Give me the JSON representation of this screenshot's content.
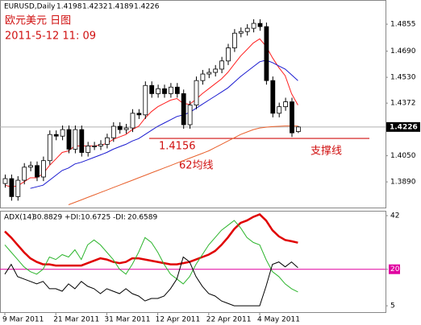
{
  "chart_data": [
    {
      "type": "candlestick",
      "symbol": "EURUSD,Daily",
      "annotations": {
        "title": "欧元美元 日图",
        "timestamp": "2011-5-12 11: 09",
        "ma_label": "62均线",
        "support_label": "支撑线"
      },
      "support_level": 1.4156,
      "last_price": 1.4226,
      "up_color": "#ffffff",
      "down_color": "#000000",
      "open": [
        1.388,
        1.391,
        1.38,
        1.39,
        1.398,
        1.399,
        1.392,
        1.402,
        1.418,
        1.417,
        1.421,
        1.409,
        1.421,
        1.407,
        1.411,
        1.411,
        1.412,
        1.416,
        1.423,
        1.421,
        1.422,
        1.431,
        1.43,
        1.448,
        1.443,
        1.446,
        1.443,
        1.447,
        1.443,
        1.424,
        1.436,
        1.451,
        1.455,
        1.456,
        1.458,
        1.463,
        1.471,
        1.48,
        1.481,
        1.483,
        1.486,
        1.484,
        1.451,
        1.431,
        1.435,
        1.438,
        1.4198
      ],
      "high": [
        1.3935,
        1.3935,
        1.3925,
        1.4005,
        1.4015,
        1.4015,
        1.4045,
        1.4205,
        1.4205,
        1.4235,
        1.4235,
        1.4235,
        1.4235,
        1.4135,
        1.4135,
        1.4145,
        1.4185,
        1.4255,
        1.4255,
        1.4245,
        1.4335,
        1.4335,
        1.4505,
        1.4505,
        1.4485,
        1.4485,
        1.4495,
        1.4495,
        1.4455,
        1.4385,
        1.4535,
        1.4575,
        1.4585,
        1.4605,
        1.4655,
        1.4735,
        1.4825,
        1.4835,
        1.4855,
        1.4885,
        1.4885,
        1.4865,
        1.4535,
        1.4375,
        1.4405,
        1.4405,
        1.4232
      ],
      "low": [
        1.3855,
        1.3775,
        1.3775,
        1.3875,
        1.3955,
        1.3895,
        1.3895,
        1.3995,
        1.4145,
        1.4145,
        1.4065,
        1.4065,
        1.4045,
        1.4045,
        1.4085,
        1.4085,
        1.4095,
        1.4135,
        1.4185,
        1.4185,
        1.4195,
        1.4275,
        1.4275,
        1.4405,
        1.4405,
        1.4405,
        1.4405,
        1.4405,
        1.4215,
        1.4215,
        1.4335,
        1.4485,
        1.4525,
        1.4535,
        1.4555,
        1.4605,
        1.4685,
        1.4775,
        1.4785,
        1.4805,
        1.4815,
        1.4485,
        1.4285,
        1.4285,
        1.4325,
        1.4165,
        1.4189
      ],
      "close": [
        1.391,
        1.38,
        1.39,
        1.398,
        1.399,
        1.392,
        1.402,
        1.418,
        1.417,
        1.421,
        1.409,
        1.421,
        1.407,
        1.411,
        1.411,
        1.412,
        1.416,
        1.423,
        1.421,
        1.422,
        1.431,
        1.43,
        1.448,
        1.443,
        1.446,
        1.443,
        1.447,
        1.443,
        1.424,
        1.436,
        1.451,
        1.455,
        1.456,
        1.458,
        1.463,
        1.471,
        1.48,
        1.481,
        1.483,
        1.486,
        1.484,
        1.451,
        1.431,
        1.435,
        1.438,
        1.419,
        1.4226
      ],
      "series": [
        {
          "color": "#ff2020",
          "values": [
            1.387,
            1.386,
            1.3865,
            1.389,
            1.3915,
            1.3915,
            1.394,
            1.399,
            1.403,
            1.407,
            1.408,
            1.411,
            1.411,
            1.411,
            1.411,
            1.4115,
            1.4125,
            1.415,
            1.4165,
            1.418,
            1.421,
            1.423,
            1.428,
            1.432,
            1.435,
            1.437,
            1.439,
            1.44,
            1.437,
            1.4365,
            1.4395,
            1.443,
            1.446,
            1.449,
            1.452,
            1.456,
            1.461,
            1.466,
            1.47,
            1.474,
            1.4765,
            1.472,
            1.465,
            1.459,
            1.454,
            1.443,
            1.436
          ]
        },
        {
          "color": "#1a1ad0",
          "values": [
            null,
            null,
            null,
            null,
            1.385,
            1.386,
            1.387,
            1.39,
            1.393,
            1.396,
            1.3975,
            1.4,
            1.401,
            1.4025,
            1.404,
            1.4055,
            1.407,
            1.409,
            1.4105,
            1.412,
            1.414,
            1.4155,
            1.418,
            1.4205,
            1.423,
            1.425,
            1.427,
            1.429,
            1.43,
            1.4315,
            1.434,
            1.4365,
            1.439,
            1.4415,
            1.444,
            1.4465,
            1.45,
            1.4535,
            1.4565,
            1.4595,
            1.4625,
            1.4635,
            1.462,
            1.46,
            1.458,
            1.4545,
            1.451
          ]
        },
        {
          "color": "#e8602c",
          "values": [
            null,
            null,
            null,
            null,
            null,
            null,
            null,
            null,
            null,
            null,
            1.375,
            1.3765,
            1.378,
            1.3795,
            1.381,
            1.3825,
            1.384,
            1.3855,
            1.387,
            1.3885,
            1.39,
            1.3915,
            1.393,
            1.3945,
            1.396,
            1.3975,
            1.399,
            1.4005,
            1.402,
            1.4035,
            1.405,
            1.4065,
            1.408,
            1.41,
            1.412,
            1.414,
            1.416,
            1.418,
            1.4195,
            1.421,
            1.422,
            1.4225,
            1.4228,
            1.423,
            1.4232,
            1.4232,
            1.4232
          ]
        }
      ],
      "ylim": [
        1.3733,
        1.5003
      ],
      "yticks": [
        1.4855,
        {
          "value": 1.469,
          "label": "1.4690"
        },
        {
          "value": 1.453,
          "label": "1.4530"
        },
        1.4372,
        {
          "value": 1.405,
          "label": "1.4050"
        },
        {
          "value": 1.389,
          "label": "1.3890"
        }
      ]
    },
    {
      "type": "line",
      "categories": [
        "9 Mar 2011",
        null,
        null,
        null,
        null,
        null,
        null,
        null,
        "21 Mar 2011",
        null,
        null,
        null,
        null,
        null,
        null,
        null,
        "31 Mar 2011",
        null,
        null,
        null,
        null,
        null,
        null,
        null,
        "12 Apr 2011",
        null,
        null,
        null,
        null,
        null,
        null,
        null,
        "22 Apr 2011",
        null,
        null,
        null,
        null,
        null,
        null,
        null,
        "4 May 2011",
        null,
        null,
        null,
        null,
        null,
        null
      ],
      "series": [
        {
          "name": "ADX(14)",
          "color": "#e00000",
          "values": [
            35.5,
            33,
            30,
            27,
            24.5,
            23,
            22,
            22,
            21.5,
            21.5,
            21.5,
            21.5,
            21.5,
            22.5,
            23.5,
            24.5,
            24,
            23,
            22.5,
            23,
            24.5,
            24.5,
            24,
            23.5,
            23,
            22.5,
            22,
            22,
            22.5,
            23,
            24,
            25,
            26,
            27.5,
            30,
            33,
            36.5,
            39,
            40,
            41.5,
            42.5,
            40,
            36,
            33.5,
            32,
            31.5,
            30.8829
          ]
        },
        {
          "name": "+DI:",
          "color": "#2db52d",
          "values": [
            30,
            27,
            24,
            21,
            19,
            18,
            20,
            25,
            24,
            26,
            25,
            28,
            24,
            30,
            32,
            30,
            27,
            24,
            20,
            18,
            22,
            27,
            33,
            31,
            27,
            22,
            18,
            16,
            14,
            17,
            22,
            26,
            30,
            33,
            36,
            38,
            40,
            37,
            33,
            31,
            30,
            24,
            19,
            17,
            14,
            12,
            10.6725
          ]
        },
        {
          "name": "-DI:",
          "color": "#000000",
          "values": [
            18,
            22,
            17,
            16,
            15,
            14,
            15,
            12,
            12,
            11,
            14,
            12,
            15,
            13,
            12,
            10,
            12,
            11,
            10,
            12,
            10,
            9,
            7,
            8,
            8,
            9,
            12,
            16,
            25,
            23,
            17,
            13,
            10,
            9,
            7,
            6,
            5,
            5,
            5,
            5,
            5,
            13,
            22,
            23,
            21,
            23,
            20.6589
          ]
        }
      ],
      "level": 20,
      "level_color": "#e000a0",
      "ylim": [
        2.4,
        44
      ],
      "yticks": [
        42,
        20,
        5
      ]
    }
  ]
}
